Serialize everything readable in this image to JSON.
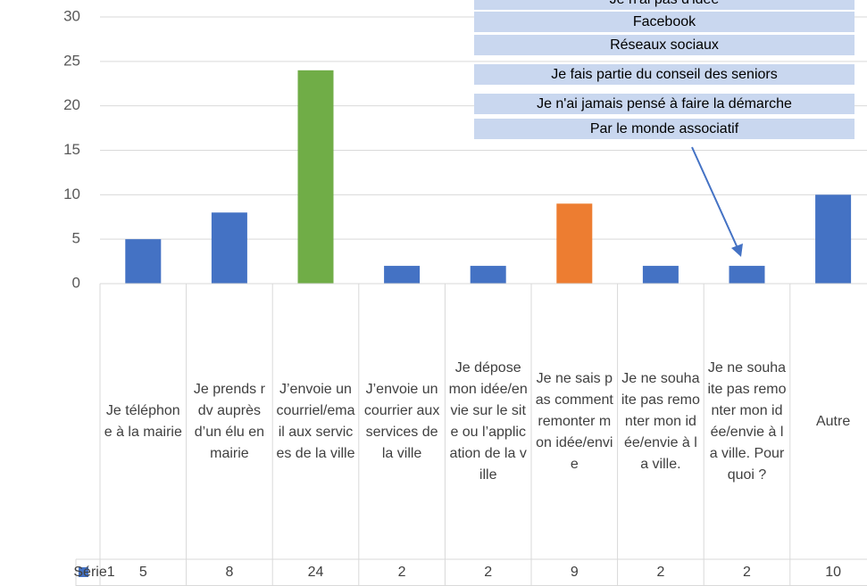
{
  "chart_data": {
    "type": "bar",
    "categories": [
      "Je téléphone à la mairie",
      "Je prends rdv auprès d’un élu en mairie",
      "J’envoie un courriel/email aux services de la ville",
      "J’envoie un courrier aux services de la ville",
      "Je dépose mon idée/envie sur le site ou l’application de la ville",
      "Je ne sais pas comment remonter mon idée/envie",
      "Je ne souhaite pas remonter mon idée/envie à la ville.",
      "Je ne souhaite pas remonter mon idée/envie à la ville. Pourquoi ?",
      "Autre"
    ],
    "series": [
      {
        "name": "Série1",
        "color": "#4472c4",
        "values": [
          5,
          8,
          24,
          2,
          2,
          9,
          2,
          2,
          10
        ],
        "point_colors": [
          "#4472c4",
          "#4472c4",
          "#70ad47",
          "#4472c4",
          "#4472c4",
          "#ed7d31",
          "#4472c4",
          "#4472c4",
          "#4472c4"
        ]
      }
    ],
    "ylim": [
      0,
      30
    ],
    "yticks": [
      0,
      5,
      10,
      15,
      20,
      25,
      30
    ],
    "grid": true,
    "data_table": true,
    "annotations": [
      "Je n'ai pas d'idée",
      "Facebook",
      "Réseaux sociaux",
      "Je fais partie du conseil des seniors",
      "Je n'ai jamais pensé à faire la démarche",
      "Par le monde associatif"
    ],
    "annotation_color": "#4472c4"
  }
}
